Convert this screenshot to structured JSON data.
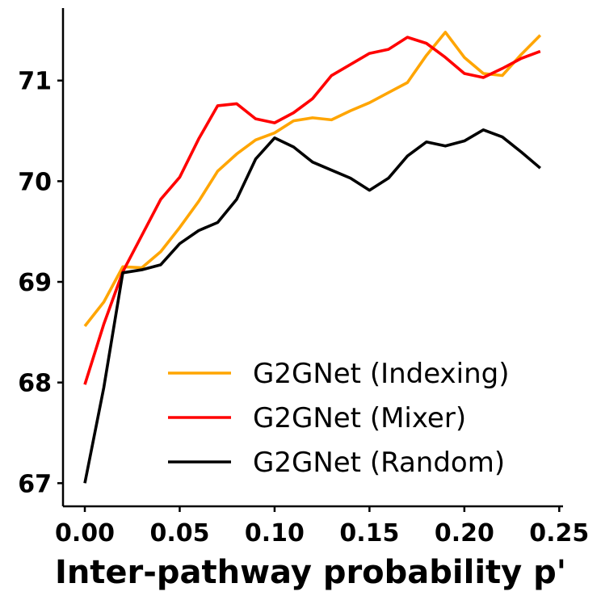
{
  "chart_data": {
    "type": "line",
    "title": "",
    "xlabel": "Inter-pathway probability p'",
    "ylabel": "",
    "xlim": [
      -0.0115,
      0.252
    ],
    "ylim": [
      66.77,
      71.72
    ],
    "xticks": [
      0.0,
      0.05,
      0.1,
      0.15,
      0.2,
      0.25
    ],
    "xtick_labels": [
      "0.00",
      "0.05",
      "0.10",
      "0.15",
      "0.20",
      "0.25"
    ],
    "yticks": [
      67,
      68,
      69,
      70,
      71
    ],
    "ytick_labels": [
      "67",
      "68",
      "69",
      "70",
      "71"
    ],
    "grid": false,
    "legend_position": "lower-right",
    "x": [
      0.0,
      0.01,
      0.02,
      0.03,
      0.04,
      0.05,
      0.06,
      0.07,
      0.08,
      0.09,
      0.1,
      0.11,
      0.12,
      0.13,
      0.14,
      0.15,
      0.16,
      0.17,
      0.18,
      0.19,
      0.2,
      0.21,
      0.22,
      0.23,
      0.24
    ],
    "series": [
      {
        "name": "G2GNet (Indexing)",
        "color": "#FFA500",
        "values": [
          68.56,
          68.8,
          69.15,
          69.14,
          69.3,
          69.54,
          69.8,
          70.1,
          70.27,
          70.41,
          70.48,
          70.6,
          70.63,
          70.61,
          70.7,
          70.78,
          70.88,
          70.98,
          71.25,
          71.48,
          71.23,
          71.07,
          71.05,
          71.26,
          71.45
        ]
      },
      {
        "name": "G2GNet (Mixer)",
        "color": "#FF0000",
        "values": [
          67.98,
          68.58,
          69.1,
          69.46,
          69.82,
          70.04,
          70.42,
          70.75,
          70.77,
          70.62,
          70.58,
          70.68,
          70.82,
          71.05,
          71.16,
          71.27,
          71.31,
          71.43,
          71.37,
          71.23,
          71.07,
          71.03,
          71.12,
          71.22,
          71.29
        ]
      },
      {
        "name": "G2GNet (Random)",
        "color": "#000000",
        "values": [
          67.0,
          67.95,
          69.09,
          69.12,
          69.17,
          69.38,
          69.51,
          69.59,
          69.82,
          70.22,
          70.43,
          70.34,
          70.19,
          70.11,
          70.03,
          69.91,
          70.03,
          70.25,
          70.39,
          70.35,
          70.4,
          70.51,
          70.44,
          70.29,
          70.13
        ]
      }
    ]
  }
}
